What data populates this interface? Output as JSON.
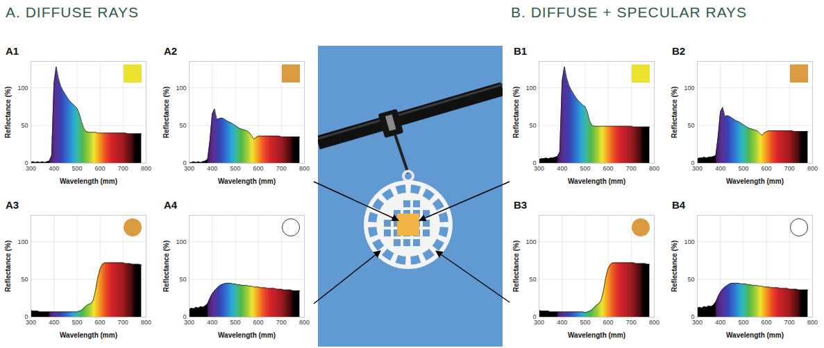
{
  "sections": [
    {
      "title": "A. DIFFUSE RAYS"
    },
    {
      "title": "B. DIFFUSE + SPECULAR RAYS"
    }
  ],
  "chart_data": [
    {
      "type": "area",
      "title": "A1",
      "x_label": "Wavelength (mm)",
      "y_label": "Reflectance (%)",
      "x": [
        300,
        310,
        320,
        330,
        340,
        350,
        360,
        370,
        380,
        390,
        400,
        410,
        420,
        430,
        440,
        450,
        460,
        470,
        480,
        490,
        500,
        510,
        520,
        530,
        540,
        550,
        560,
        570,
        580,
        590,
        600,
        610,
        620,
        630,
        640,
        650,
        660,
        670,
        680,
        690,
        700,
        710,
        720,
        730,
        740,
        750,
        760,
        770,
        780
      ],
      "values": [
        1,
        2,
        1,
        2,
        1,
        2,
        1,
        2,
        3,
        10,
        105,
        128,
        112,
        102,
        96,
        91,
        86,
        82,
        79,
        76,
        73,
        66,
        55,
        46,
        42,
        41,
        41,
        41,
        41,
        40,
        40,
        40,
        40,
        40,
        40,
        40,
        40,
        40,
        40,
        40,
        40,
        40,
        39,
        39,
        39,
        39,
        39,
        39,
        39
      ],
      "xlim": [
        300,
        800
      ],
      "ylim": [
        0,
        135
      ],
      "xticks": [
        300,
        400,
        500,
        600,
        700,
        800
      ],
      "yticks": [
        0,
        50,
        100
      ],
      "grid": true,
      "marker": "square",
      "color": "#ebe22e"
    },
    {
      "type": "area",
      "title": "A2",
      "x_label": "Wavelength (mm)",
      "y_label": "Reflectance (%)",
      "x": [
        300,
        310,
        320,
        330,
        340,
        350,
        360,
        370,
        380,
        390,
        400,
        410,
        420,
        430,
        440,
        450,
        460,
        470,
        480,
        490,
        500,
        510,
        520,
        530,
        540,
        550,
        560,
        570,
        580,
        590,
        600,
        610,
        620,
        630,
        640,
        650,
        660,
        670,
        680,
        690,
        700,
        710,
        720,
        730,
        740,
        750,
        760,
        770,
        780
      ],
      "values": [
        1,
        1,
        2,
        1,
        2,
        1,
        2,
        3,
        5,
        30,
        65,
        72,
        58,
        59,
        60,
        59,
        57,
        55,
        54,
        52,
        50,
        48,
        46,
        45,
        44,
        43,
        41,
        37,
        32,
        34,
        36,
        36,
        36,
        36,
        36,
        36,
        36,
        36,
        36,
        36,
        35,
        35,
        35,
        35,
        35,
        35,
        35,
        35,
        35
      ],
      "xlim": [
        300,
        800
      ],
      "ylim": [
        0,
        135
      ],
      "xticks": [
        300,
        400,
        500,
        600,
        700,
        800
      ],
      "yticks": [
        0,
        50,
        100
      ],
      "grid": true,
      "marker": "square",
      "color": "#dc9a3e"
    },
    {
      "type": "area",
      "title": "A3",
      "x_label": "Wavelength (mm)",
      "y_label": "Reflectance (%)",
      "x": [
        300,
        310,
        320,
        330,
        340,
        350,
        360,
        370,
        380,
        390,
        400,
        410,
        420,
        430,
        440,
        450,
        460,
        470,
        480,
        490,
        500,
        510,
        520,
        530,
        540,
        550,
        560,
        570,
        580,
        590,
        600,
        610,
        620,
        630,
        640,
        650,
        660,
        670,
        680,
        690,
        700,
        710,
        720,
        730,
        740,
        750,
        760,
        770,
        780
      ],
      "values": [
        9,
        8,
        8,
        8,
        7,
        7,
        7,
        7,
        7,
        7,
        7,
        7,
        7,
        7,
        7,
        7,
        7,
        7,
        7,
        7,
        7,
        8,
        9,
        12,
        15,
        17,
        18,
        22,
        35,
        52,
        64,
        70,
        72,
        72,
        72,
        72,
        72,
        72,
        72,
        72,
        72,
        71,
        71,
        71,
        70,
        70,
        70,
        70,
        69
      ],
      "xlim": [
        300,
        800
      ],
      "ylim": [
        0,
        135
      ],
      "xticks": [
        300,
        400,
        500,
        600,
        700,
        800
      ],
      "yticks": [
        0,
        50,
        100
      ],
      "grid": true,
      "marker": "circle",
      "color": "#dc9a3e"
    },
    {
      "type": "area",
      "title": "A4",
      "x_label": "Wavelength (mm)",
      "y_label": "Reflectance (%)",
      "x": [
        300,
        310,
        320,
        330,
        340,
        350,
        360,
        370,
        380,
        390,
        400,
        410,
        420,
        430,
        440,
        450,
        460,
        470,
        480,
        490,
        500,
        510,
        520,
        530,
        540,
        550,
        560,
        570,
        580,
        590,
        600,
        610,
        620,
        630,
        640,
        650,
        660,
        670,
        680,
        690,
        700,
        710,
        720,
        730,
        740,
        750,
        760,
        770,
        780
      ],
      "values": [
        10,
        12,
        11,
        13,
        12,
        14,
        13,
        15,
        18,
        25,
        31,
        35,
        38,
        41,
        43,
        44,
        45,
        45,
        45,
        44,
        44,
        43,
        43,
        42,
        42,
        42,
        41,
        41,
        40,
        40,
        40,
        39,
        39,
        39,
        38,
        38,
        38,
        38,
        37,
        37,
        37,
        36,
        36,
        36,
        36,
        35,
        35,
        35,
        35
      ],
      "xlim": [
        300,
        800
      ],
      "ylim": [
        0,
        135
      ],
      "xticks": [
        300,
        400,
        500,
        600,
        700,
        800
      ],
      "yticks": [
        0,
        50,
        100
      ],
      "grid": true,
      "marker": "circle",
      "color": "#ffffff"
    },
    {
      "type": "area",
      "title": "B1",
      "x_label": "Wavelength (mm)",
      "y_label": "Reflectance (%)",
      "x": [
        300,
        310,
        320,
        330,
        340,
        350,
        360,
        370,
        380,
        390,
        400,
        410,
        420,
        430,
        440,
        450,
        460,
        470,
        480,
        490,
        500,
        510,
        520,
        530,
        540,
        550,
        560,
        570,
        580,
        590,
        600,
        610,
        620,
        630,
        640,
        650,
        660,
        670,
        680,
        690,
        700,
        710,
        720,
        730,
        740,
        750,
        760,
        770,
        780
      ],
      "values": [
        5,
        6,
        6,
        7,
        6,
        7,
        7,
        8,
        9,
        15,
        108,
        128,
        113,
        103,
        97,
        92,
        87,
        83,
        80,
        77,
        75,
        68,
        56,
        50,
        49,
        49,
        49,
        49,
        49,
        49,
        49,
        49,
        49,
        49,
        49,
        49,
        49,
        49,
        49,
        49,
        49,
        48,
        48,
        48,
        48,
        48,
        48,
        48,
        48
      ],
      "xlim": [
        300,
        800
      ],
      "ylim": [
        0,
        135
      ],
      "xticks": [
        300,
        400,
        500,
        600,
        700,
        800
      ],
      "yticks": [
        0,
        50,
        100
      ],
      "grid": true,
      "marker": "square",
      "color": "#ebe22e"
    },
    {
      "type": "area",
      "title": "B2",
      "x_label": "Wavelength (mm)",
      "y_label": "Reflectance (%)",
      "x": [
        300,
        310,
        320,
        330,
        340,
        350,
        360,
        370,
        380,
        390,
        400,
        410,
        420,
        430,
        440,
        450,
        460,
        470,
        480,
        490,
        500,
        510,
        520,
        530,
        540,
        550,
        560,
        570,
        580,
        590,
        600,
        610,
        620,
        630,
        640,
        650,
        660,
        670,
        680,
        690,
        700,
        710,
        720,
        730,
        740,
        750,
        760,
        770,
        780
      ],
      "values": [
        6,
        7,
        7,
        8,
        7,
        8,
        8,
        9,
        10,
        35,
        68,
        74,
        62,
        63,
        62,
        60,
        58,
        56,
        55,
        53,
        51,
        49,
        47,
        46,
        45,
        44,
        43,
        40,
        37,
        40,
        42,
        43,
        43,
        43,
        43,
        43,
        43,
        43,
        43,
        43,
        43,
        43,
        42,
        42,
        42,
        42,
        42,
        42,
        42
      ],
      "xlim": [
        300,
        800
      ],
      "ylim": [
        0,
        135
      ],
      "xticks": [
        300,
        400,
        500,
        600,
        700,
        800
      ],
      "yticks": [
        0,
        50,
        100
      ],
      "grid": true,
      "marker": "square",
      "color": "#dc9a3e"
    },
    {
      "type": "area",
      "title": "B3",
      "x_label": "Wavelength (mm)",
      "y_label": "Reflectance (%)",
      "x": [
        300,
        310,
        320,
        330,
        340,
        350,
        360,
        370,
        380,
        390,
        400,
        410,
        420,
        430,
        440,
        450,
        460,
        470,
        480,
        490,
        500,
        510,
        520,
        530,
        540,
        550,
        560,
        570,
        580,
        590,
        600,
        610,
        620,
        630,
        640,
        650,
        660,
        670,
        680,
        690,
        700,
        710,
        720,
        730,
        740,
        750,
        760,
        770,
        780
      ],
      "values": [
        9,
        8,
        8,
        8,
        8,
        7,
        7,
        7,
        7,
        7,
        7,
        7,
        7,
        7,
        7,
        7,
        7,
        7,
        7,
        7,
        6,
        7,
        8,
        10,
        13,
        16,
        18,
        23,
        36,
        53,
        65,
        70,
        72,
        72,
        72,
        72,
        72,
        72,
        72,
        72,
        72,
        72,
        71,
        71,
        71,
        71,
        71,
        70,
        70
      ],
      "xlim": [
        300,
        800
      ],
      "ylim": [
        0,
        135
      ],
      "xticks": [
        300,
        400,
        500,
        600,
        700,
        800
      ],
      "yticks": [
        0,
        50,
        100
      ],
      "grid": true,
      "marker": "circle",
      "color": "#dc9a3e"
    },
    {
      "type": "area",
      "title": "B4",
      "x_label": "Wavelength (mm)",
      "y_label": "Reflectance (%)",
      "x": [
        300,
        310,
        320,
        330,
        340,
        350,
        360,
        370,
        380,
        390,
        400,
        410,
        420,
        430,
        440,
        450,
        460,
        470,
        480,
        490,
        500,
        510,
        520,
        530,
        540,
        550,
        560,
        570,
        580,
        590,
        600,
        610,
        620,
        630,
        640,
        650,
        660,
        670,
        680,
        690,
        700,
        710,
        720,
        730,
        740,
        750,
        760,
        770,
        780
      ],
      "values": [
        12,
        13,
        12,
        14,
        13,
        15,
        14,
        16,
        20,
        27,
        33,
        37,
        40,
        42,
        44,
        45,
        45,
        45,
        45,
        44,
        44,
        44,
        43,
        43,
        42,
        42,
        42,
        41,
        41,
        40,
        40,
        40,
        39,
        39,
        39,
        39,
        38,
        38,
        38,
        38,
        37,
        37,
        37,
        37,
        36,
        36,
        36,
        36,
        36
      ],
      "xlim": [
        300,
        800
      ],
      "ylim": [
        0,
        135
      ],
      "xticks": [
        300,
        400,
        500,
        600,
        700,
        800
      ],
      "yticks": [
        0,
        50,
        100
      ],
      "grid": true,
      "marker": "circle",
      "color": "#ffffff"
    }
  ]
}
